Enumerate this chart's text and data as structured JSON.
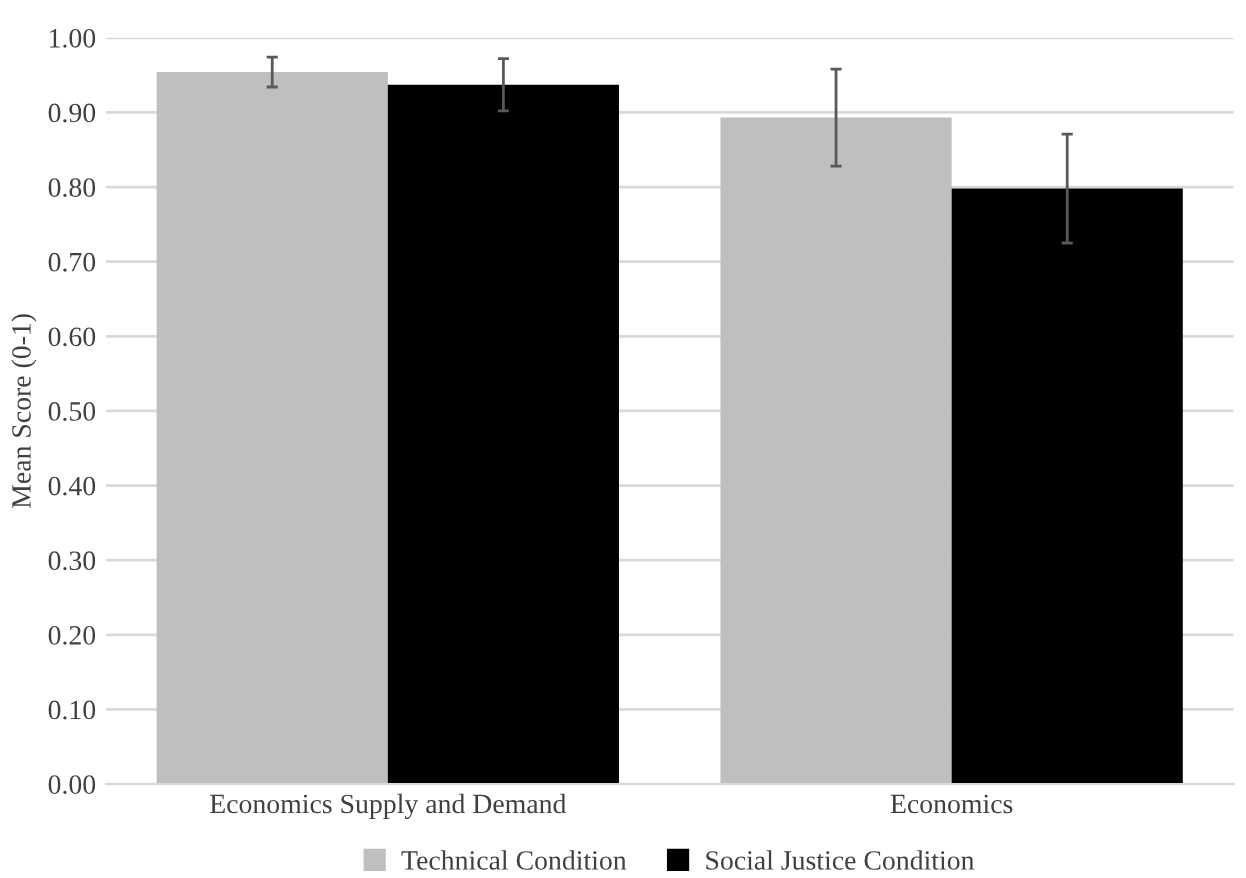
{
  "chart_data": {
    "type": "bar",
    "ylabel": "Mean Score (0-1)",
    "categories": [
      "Economics Supply and Demand",
      "Economics"
    ],
    "series": [
      {
        "name": "Technical Condition",
        "color": "#bfbfbf",
        "values": [
          0.954,
          0.893
        ],
        "errors": [
          0.02,
          0.065
        ]
      },
      {
        "name": "Social Justice Condition",
        "color": "#000000",
        "values": [
          0.937,
          0.798
        ],
        "errors": [
          0.035,
          0.073
        ]
      }
    ],
    "ylim": [
      0,
      1
    ],
    "yticks": [
      {
        "value": 0,
        "label": "0.00"
      },
      {
        "value": 0.1,
        "label": "0.10"
      },
      {
        "value": 0.2,
        "label": "0.20"
      },
      {
        "value": 0.3,
        "label": "0.30"
      },
      {
        "value": 0.4,
        "label": "0.40"
      },
      {
        "value": 0.5,
        "label": "0.50"
      },
      {
        "value": 0.6,
        "label": "0.60"
      },
      {
        "value": 0.7,
        "label": "0.70"
      },
      {
        "value": 0.8,
        "label": "0.80"
      },
      {
        "value": 0.9,
        "label": "0.90"
      },
      {
        "value": 1,
        "label": "1.00"
      }
    ],
    "grid": "y",
    "legend": "bottom"
  }
}
